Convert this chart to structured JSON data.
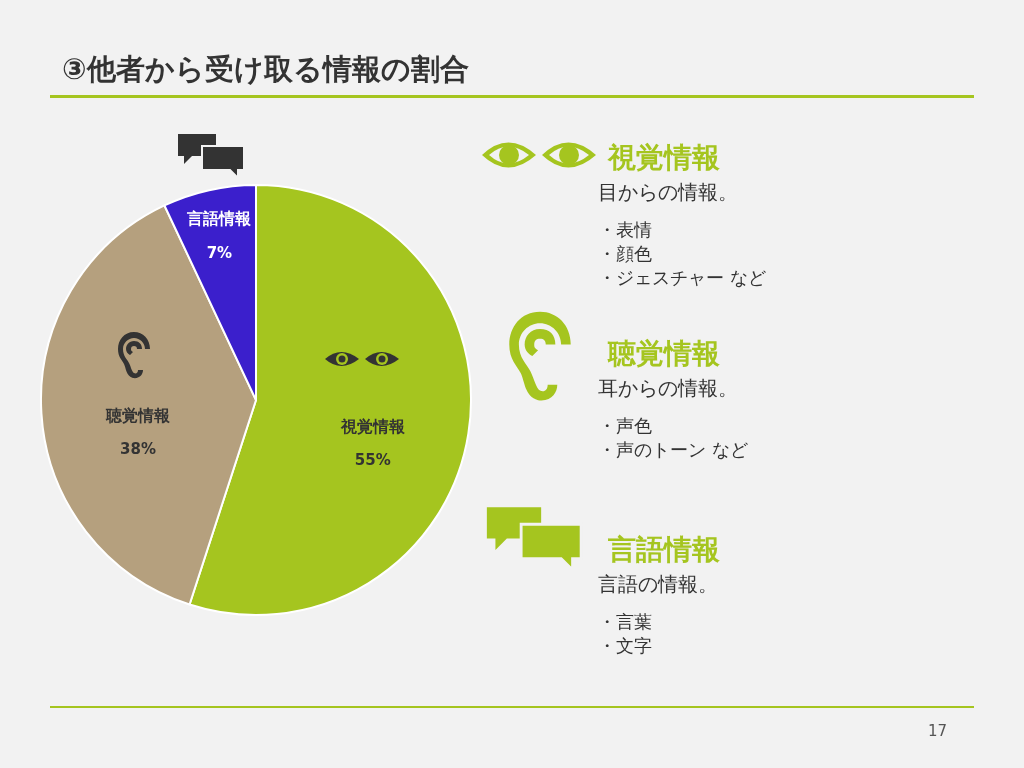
{
  "chart_data": {
    "type": "pie",
    "title": "③他者から受け取る情報の割合",
    "categories": [
      "視覚情報",
      "聴覚情報",
      "言語情報"
    ],
    "values": [
      55,
      38,
      7
    ],
    "value_labels": [
      "55%",
      "38%",
      "7%"
    ],
    "colors": [
      "#a5c51f",
      "#b5a07e",
      "#3b1fcc"
    ],
    "legend": false,
    "annotations": [
      "視覚情報",
      "目からの情報。",
      "・表情",
      "・顔色",
      "・ジェスチャー など",
      "聴覚情報",
      "耳からの情報。",
      "・声色",
      "・声のトーン など",
      "言語情報",
      "言語の情報。",
      "・言葉",
      "・文字",
      "17"
    ]
  }
}
